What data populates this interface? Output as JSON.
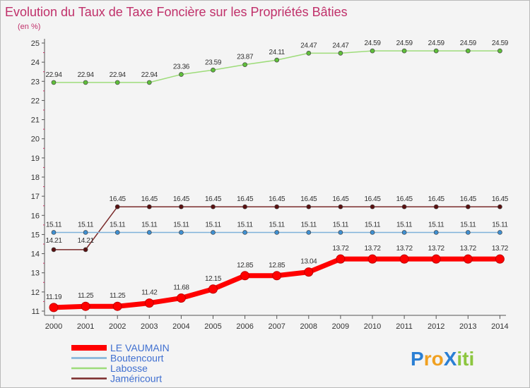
{
  "chart_data": {
    "type": "line",
    "title": "Evolution du Taux de Taxe Foncière sur les Propriétés Bâties",
    "unit_label": "(en %)",
    "x": [
      "2000",
      "2001",
      "2002",
      "2003",
      "2004",
      "2005",
      "2006",
      "2007",
      "2008",
      "2009",
      "2010",
      "2011",
      "2012",
      "2013",
      "2014"
    ],
    "ylim": [
      11,
      25
    ],
    "yticks": [
      "11",
      "12",
      "13",
      "14",
      "15",
      "16",
      "17",
      "18",
      "19",
      "20",
      "21",
      "22",
      "23",
      "24",
      "25"
    ],
    "grid": false,
    "legend_position": "bottom-left",
    "series": [
      {
        "name": "LE VAUMAIN",
        "color": "#ff0000",
        "marker_color": "#e00000",
        "values": [
          11.19,
          11.25,
          11.25,
          11.42,
          11.68,
          12.15,
          12.85,
          12.85,
          13.04,
          13.72,
          13.72,
          13.72,
          13.72,
          13.72,
          13.72
        ],
        "labels": [
          "11.19",
          "11.25",
          "11.25",
          "11.42",
          "11.68",
          "12.15",
          "12.85",
          "12.85",
          "13.04",
          "13.72",
          "13.72",
          "13.72",
          "13.72",
          "13.72",
          "13.72"
        ]
      },
      {
        "name": "Boutencourt",
        "color": "#7fb2d9",
        "marker_color": "#3f8fd0",
        "values": [
          15.11,
          15.11,
          15.11,
          15.11,
          15.11,
          15.11,
          15.11,
          15.11,
          15.11,
          15.11,
          15.11,
          15.11,
          15.11,
          15.11,
          15.11
        ],
        "labels": [
          "15.11",
          "15.11",
          "15.11",
          "15.11",
          "15.11",
          "15.11",
          "15.11",
          "15.11",
          "15.11",
          "15.11",
          "15.11",
          "15.11",
          "15.11",
          "15.11",
          "15.11"
        ]
      },
      {
        "name": "Labosse",
        "color": "#9edc7a",
        "marker_color": "#5fbf3a",
        "values": [
          22.94,
          22.94,
          22.94,
          22.94,
          23.36,
          23.59,
          23.87,
          24.11,
          24.47,
          24.47,
          24.59,
          24.59,
          24.59,
          24.59,
          24.59
        ],
        "labels": [
          "22.94",
          "22.94",
          "22.94",
          "22.94",
          "23.36",
          "23.59",
          "23.87",
          "24.11",
          "24.47",
          "24.47",
          "24.59",
          "24.59",
          "24.59",
          "24.59",
          "24.59"
        ]
      },
      {
        "name": "Jaméricourt",
        "color": "#7a2a2a",
        "marker_color": "#5a1010",
        "values": [
          14.21,
          14.21,
          16.45,
          16.45,
          16.45,
          16.45,
          16.45,
          16.45,
          16.45,
          16.45,
          16.45,
          16.45,
          16.45,
          16.45,
          16.45
        ],
        "labels": [
          "14.21",
          "14.21",
          "16.45",
          "16.45",
          "16.45",
          "16.45",
          "16.45",
          "16.45",
          "16.45",
          "16.45",
          "16.45",
          "16.45",
          "16.45",
          "16.45",
          "16.45"
        ]
      }
    ]
  },
  "colors": {
    "title": "#c0306a",
    "legend_text": "#3f6fd0",
    "axis": "#555555"
  },
  "logo": {
    "text": "ProXiti",
    "letters": [
      "P",
      "r",
      "o",
      "X",
      "i",
      "t",
      "i"
    ],
    "letter_colors": [
      "#2a7fd4",
      "#f0a020",
      "#f0a020",
      "#2a7fd4",
      "#8cc63f",
      "#8cc63f",
      "#8cc63f"
    ]
  }
}
